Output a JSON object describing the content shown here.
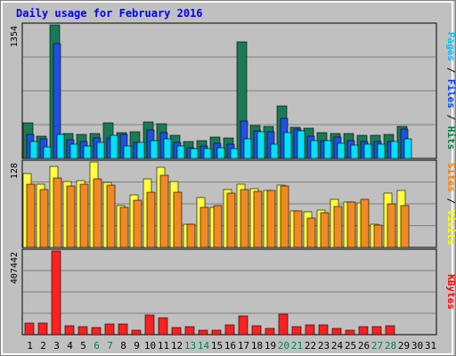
{
  "chart_data": {
    "type": "bar",
    "title": "Daily usage for February 2016",
    "x": [
      "1",
      "2",
      "3",
      "4",
      "5",
      "6",
      "7",
      "8",
      "9",
      "10",
      "11",
      "12",
      "13",
      "14",
      "15",
      "16",
      "17",
      "18",
      "19",
      "20",
      "21",
      "22",
      "23",
      "24",
      "25",
      "26",
      "27",
      "28",
      "29",
      "30",
      "31"
    ],
    "weekend_days": [
      6,
      7,
      13,
      14,
      20,
      21,
      27,
      28
    ],
    "panels": [
      {
        "max_label": "1354",
        "ymax": 1354,
        "side_label": [
          {
            "text": "Pages",
            "color": "#00c0ff"
          },
          {
            "text": " / ",
            "color": "#000000"
          },
          {
            "text": "Files",
            "color": "#0040ff"
          },
          {
            "text": " / ",
            "color": "#000000"
          },
          {
            "text": "Hits",
            "color": "#008040"
          }
        ],
        "series": [
          {
            "name": "Hits",
            "color": "#1a7a55",
            "values": [
              365,
              224,
              1354,
              250,
              247,
              254,
              362,
              266,
              267,
              371,
              354,
              234,
              176,
              184,
              218,
              210,
              1184,
              336,
              321,
              533,
              315,
              305,
              264,
              257,
              254,
              235,
              232,
              240,
              325,
              0,
              0
            ]
          },
          {
            "name": "Files",
            "color": "#2050e0",
            "values": [
              241,
              197,
              1165,
              191,
              172,
              206,
              205,
              241,
              158,
              287,
              262,
              158,
              108,
              124,
              155,
              148,
              378,
              278,
              267,
              407,
              300,
              227,
              182,
              219,
              181,
              168,
              168,
              175,
              297,
              0,
              0
            ]
          },
          {
            "name": "Pages",
            "color": "#00e0ff",
            "values": [
              167,
              120,
              240,
              140,
              124,
              162,
              239,
              127,
              161,
              185,
              196,
              128,
              103,
              101,
              106,
              96,
              198,
              275,
              147,
              264,
              283,
              178,
              182,
              149,
              137,
              148,
              147,
              167,
              198,
              0,
              0
            ]
          }
        ]
      },
      {
        "max_label": "128",
        "ymax": 128,
        "side_label": [
          {
            "text": "Sites",
            "color": "#ff8000"
          },
          {
            "text": " / ",
            "color": "#000000"
          },
          {
            "text": "Visits",
            "color": "#ffff00"
          }
        ],
        "series": [
          {
            "name": "Visits",
            "color": "#ffff40",
            "values": [
              110,
              94,
              121,
              99,
              100,
              128,
              97,
              63,
              79,
              102,
              120,
              98,
              35,
              75,
              60,
              87,
              94,
              88,
              85,
              93,
              55,
              53,
              56,
              72,
              68,
              67,
              34,
              81,
              85,
              0,
              0
            ]
          },
          {
            "name": "Sites",
            "color": "#f08a24",
            "values": [
              95,
              86,
              104,
              92,
              95,
              102,
              93,
              60,
              71,
              82,
              108,
              83,
              34,
              60,
              62,
              81,
              87,
              84,
              85,
              92,
              55,
              44,
              52,
              61,
              68,
              72,
              33,
              65,
              63,
              0,
              0
            ]
          }
        ]
      },
      {
        "max_label": "407442",
        "ymax": 407442,
        "side_label": [
          {
            "text": "KBytes",
            "color": "#ff0000"
          }
        ],
        "series": [
          {
            "name": "KBytes",
            "color": "#ff2020",
            "values": [
              56000,
              58000,
              407442,
              45000,
              37000,
              34000,
              52000,
              50000,
              21000,
              97000,
              84000,
              34000,
              37000,
              21000,
              23000,
              48000,
              92000,
              42000,
              29000,
              101000,
              40000,
              46000,
              46000,
              30000,
              21000,
              37000,
              38000,
              44000,
              0,
              0,
              0
            ]
          }
        ]
      }
    ],
    "colors": {
      "background": "#c0c0c0",
      "frame_outer": "#ffffff",
      "frame_inner": "#a8a8a8",
      "title": "#0000ff",
      "grid": "#808080",
      "weekday": "#000000",
      "weekend": "#00805a"
    }
  }
}
